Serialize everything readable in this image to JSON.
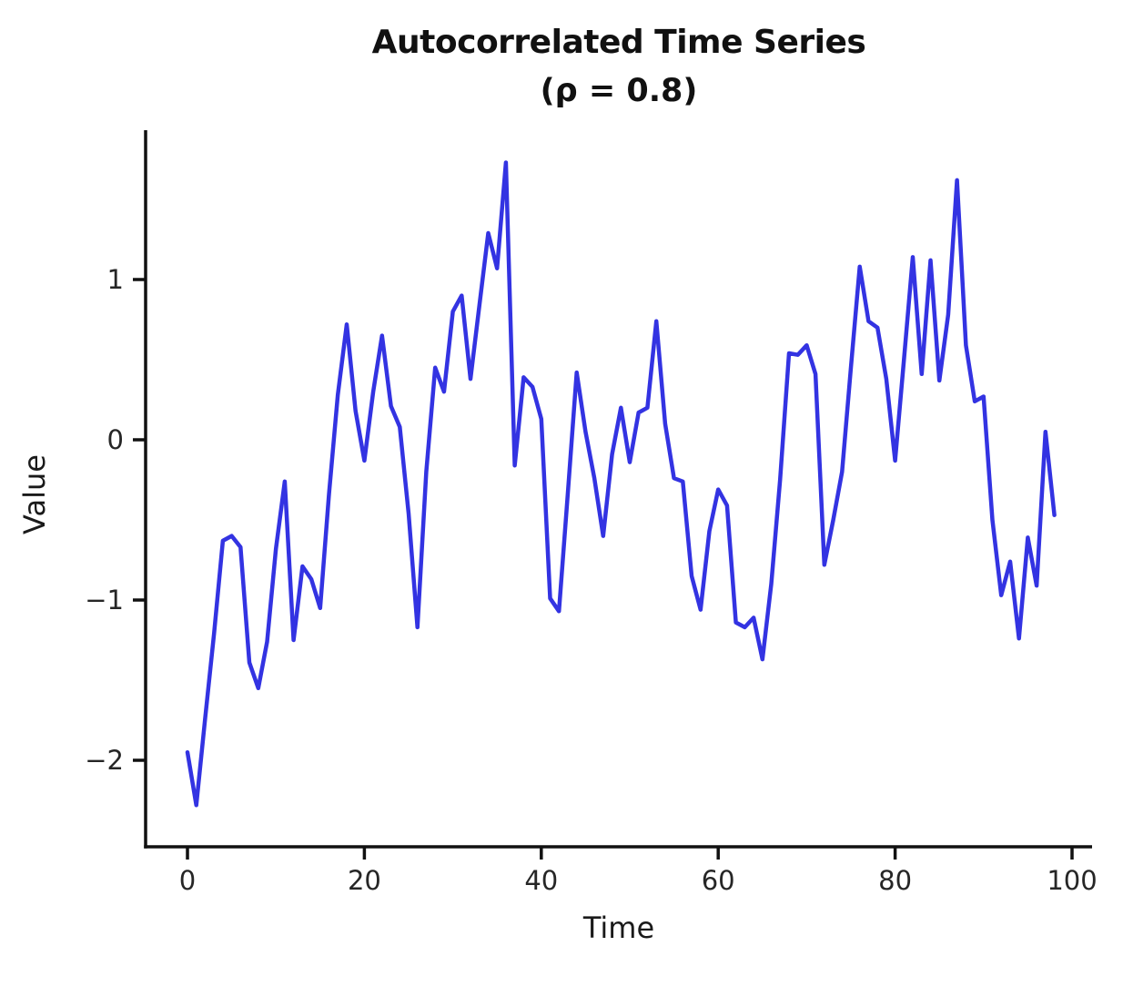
{
  "figure": {
    "title": "Autocorrelated Time Series",
    "subtitle": "(ρ = 0.8)"
  },
  "chart_data": {
    "type": "line",
    "title": "Autocorrelated Time Series",
    "subtitle": "(ρ = 0.8)",
    "xlabel": "Time",
    "ylabel": "Value",
    "x_ticks": [
      0,
      20,
      40,
      60,
      80,
      100
    ],
    "y_ticks": [
      1,
      0,
      -1,
      -2
    ],
    "xlim": [
      -4.8,
      102.3
    ],
    "ylim": [
      -2.54,
      1.93
    ],
    "grid": false,
    "legend": null,
    "line_color": "#3333e2",
    "axis_color": "#111111",
    "background": "#ffffff",
    "x_start": 0,
    "x_step": 1,
    "values": [
      -1.95,
      -2.28,
      -1.74,
      -1.21,
      -0.63,
      -0.6,
      -0.67,
      -1.39,
      -1.55,
      -1.26,
      -0.68,
      -0.26,
      -1.25,
      -0.79,
      -0.87,
      -1.05,
      -0.34,
      0.28,
      0.72,
      0.18,
      -0.13,
      0.3,
      0.65,
      0.21,
      0.08,
      -0.46,
      -1.17,
      -0.2,
      0.45,
      0.3,
      0.8,
      0.9,
      0.38,
      0.84,
      1.29,
      1.07,
      1.73,
      -0.16,
      0.39,
      0.33,
      0.13,
      -0.99,
      -1.07,
      -0.33,
      0.42,
      0.05,
      -0.24,
      -0.6,
      -0.09,
      0.2,
      -0.14,
      0.17,
      0.2,
      0.74,
      0.1,
      -0.24,
      -0.26,
      -0.85,
      -1.06,
      -0.57,
      -0.31,
      -0.41,
      -1.14,
      -1.17,
      -1.11,
      -1.37,
      -0.9,
      -0.25,
      0.54,
      0.53,
      0.59,
      0.41,
      -0.78,
      -0.5,
      -0.2,
      0.45,
      1.08,
      0.74,
      0.7,
      0.38,
      -0.13,
      0.5,
      1.14,
      0.41,
      1.12,
      0.37,
      0.78,
      1.62,
      0.59,
      0.24,
      0.27,
      -0.5,
      -0.97,
      -0.76,
      -1.24,
      -0.61,
      -0.91,
      0.05,
      -0.47
    ]
  }
}
